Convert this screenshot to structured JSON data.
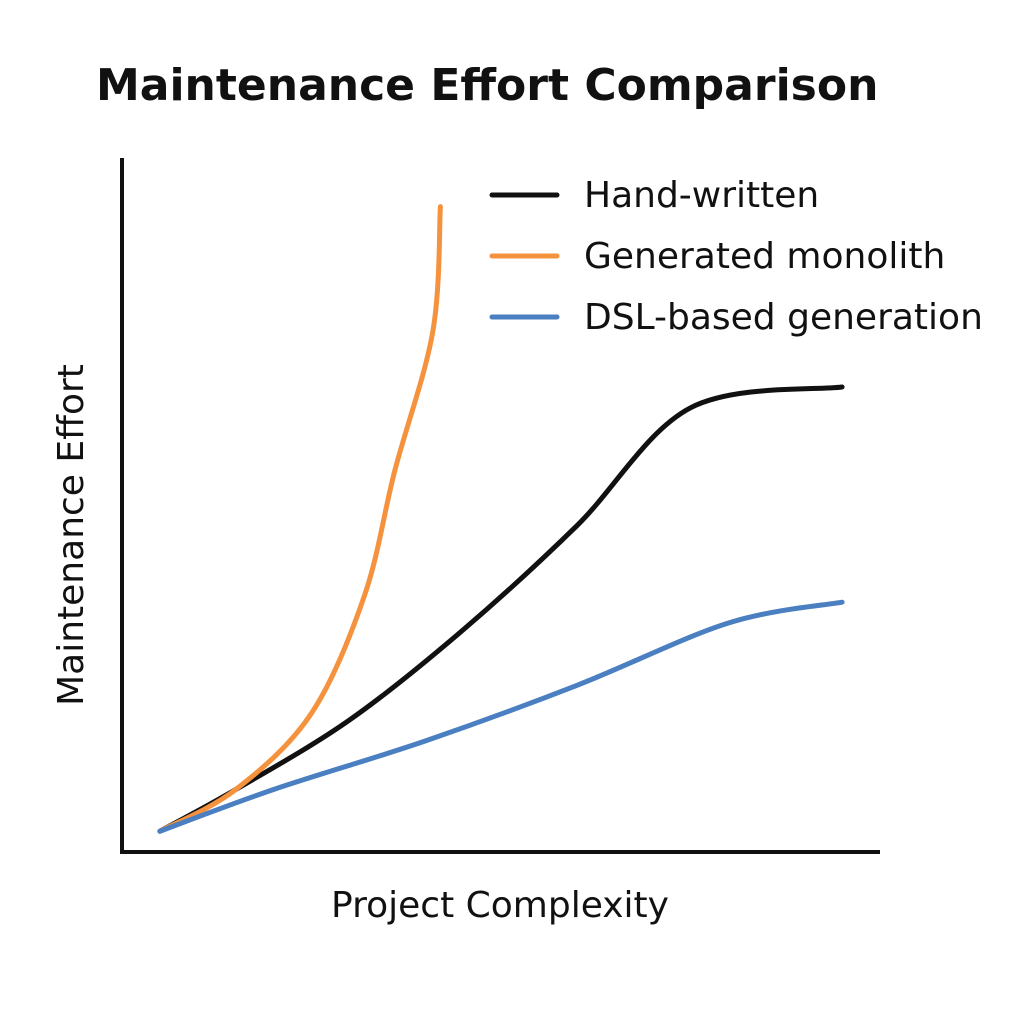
{
  "chart_data": {
    "type": "line",
    "title": "Maintenance Effort Comparison",
    "xlabel": "Project Complexity",
    "ylabel": "Maintenance Effort",
    "xlim": [
      0,
      10
    ],
    "ylim": [
      0,
      10
    ],
    "grid": false,
    "legend_position": "top-right",
    "series": [
      {
        "name": "Hand-written",
        "color": "#111111",
        "x": [
          0.5,
          1.5,
          3,
          4.5,
          6,
          7.5,
          9.5
        ],
        "y": [
          0.3,
          0.9,
          1.9,
          3.2,
          4.7,
          6.4,
          6.7
        ]
      },
      {
        "name": "Generated monolith",
        "color": "#F5923E",
        "x": [
          0.5,
          1.5,
          2.5,
          3.2,
          3.6,
          4.1,
          4.2
        ],
        "y": [
          0.3,
          0.9,
          2.0,
          3.7,
          5.5,
          7.5,
          9.3
        ]
      },
      {
        "name": "DSL-based generation",
        "color": "#4A7FC1",
        "x": [
          0.5,
          2,
          4,
          6,
          8,
          9.5
        ],
        "y": [
          0.3,
          0.9,
          1.6,
          2.4,
          3.3,
          3.6
        ]
      }
    ]
  }
}
